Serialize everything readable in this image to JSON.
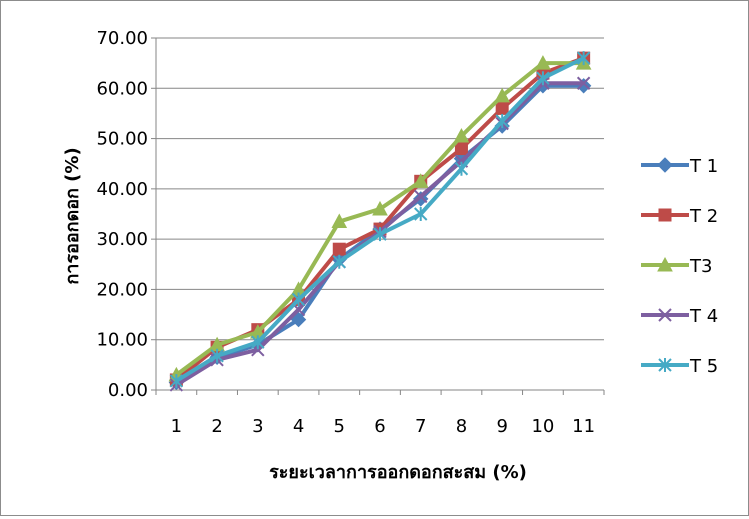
{
  "chart_data": {
    "type": "line",
    "title": "",
    "xlabel": "ระยะเวลาการออกดอกสะสม (%)",
    "ylabel": "การออกดอก (%)",
    "categories": [
      "1",
      "2",
      "3",
      "4",
      "5",
      "6",
      "7",
      "8",
      "9",
      "10",
      "11"
    ],
    "ylim": [
      0,
      70
    ],
    "ytick_step": 10,
    "ytick_labels": [
      "0.00",
      "10.00",
      "20.00",
      "30.00",
      "40.00",
      "50.00",
      "60.00",
      "70.00"
    ],
    "grid": true,
    "legend_position": "right",
    "series": [
      {
        "name": "T 1",
        "marker": "diamond",
        "color": "#4a7ebb",
        "values": [
          1.5,
          6.5,
          9.0,
          14.0,
          26.0,
          32.0,
          38.0,
          46.0,
          52.5,
          60.5,
          60.5
        ]
      },
      {
        "name": "T 2",
        "marker": "square",
        "color": "#be4b48",
        "values": [
          2.0,
          8.5,
          12.0,
          18.0,
          28.0,
          32.0,
          41.5,
          48.0,
          56.0,
          63.0,
          66.0
        ]
      },
      {
        "name": "T3",
        "marker": "triangle",
        "color": "#98b954",
        "values": [
          3.0,
          9.0,
          11.5,
          20.0,
          33.5,
          36.0,
          41.5,
          50.5,
          58.5,
          65.0,
          65.0
        ]
      },
      {
        "name": "T 4",
        "marker": "x",
        "color": "#7d5fa0",
        "values": [
          1.0,
          6.0,
          8.0,
          16.0,
          25.5,
          31.5,
          38.5,
          45.5,
          53.0,
          61.0,
          61.0
        ]
      },
      {
        "name": "T 5",
        "marker": "star",
        "color": "#46aac5",
        "values": [
          1.8,
          6.8,
          9.5,
          18.0,
          25.5,
          31.0,
          35.0,
          44.0,
          53.5,
          62.0,
          66.0
        ]
      }
    ]
  }
}
